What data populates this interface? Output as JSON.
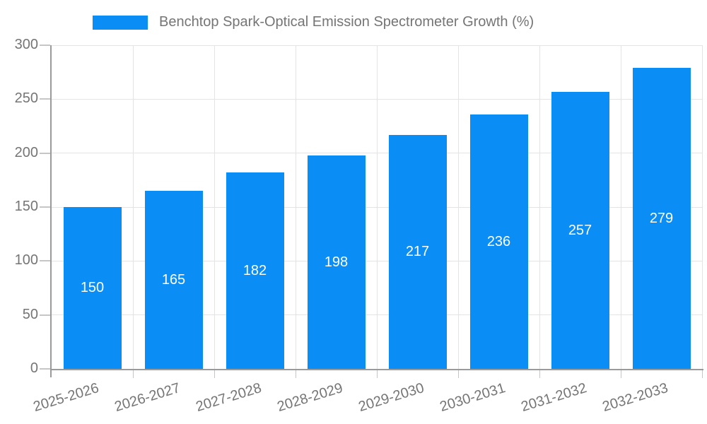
{
  "chart_data": {
    "type": "bar",
    "title": "Benchtop Spark-Optical Emission Spectrometer Growth (%)",
    "legend": {
      "label": "Benchtop Spark-Optical Emission Spectrometer Growth (%)",
      "position": "top-center"
    },
    "categories": [
      "2025-2026",
      "2026-2027",
      "2027-2028",
      "2028-2029",
      "2029-2030",
      "2030-2031",
      "2031-2032",
      "2032-2033"
    ],
    "values": [
      150,
      165,
      182,
      198,
      217,
      236,
      257,
      279
    ],
    "xlabel": "",
    "ylabel": "",
    "ylim": [
      0,
      300
    ],
    "yticks": [
      0,
      50,
      100,
      150,
      200,
      250,
      300
    ],
    "grid": true,
    "colors": {
      "bar": "#0a8ef5",
      "value_label": "#ffffff",
      "axis": "#9a9a9a",
      "gridline": "#e4e4e4",
      "tick": "#c6c6c6",
      "text": "#757575",
      "background": "#ffffff"
    }
  }
}
